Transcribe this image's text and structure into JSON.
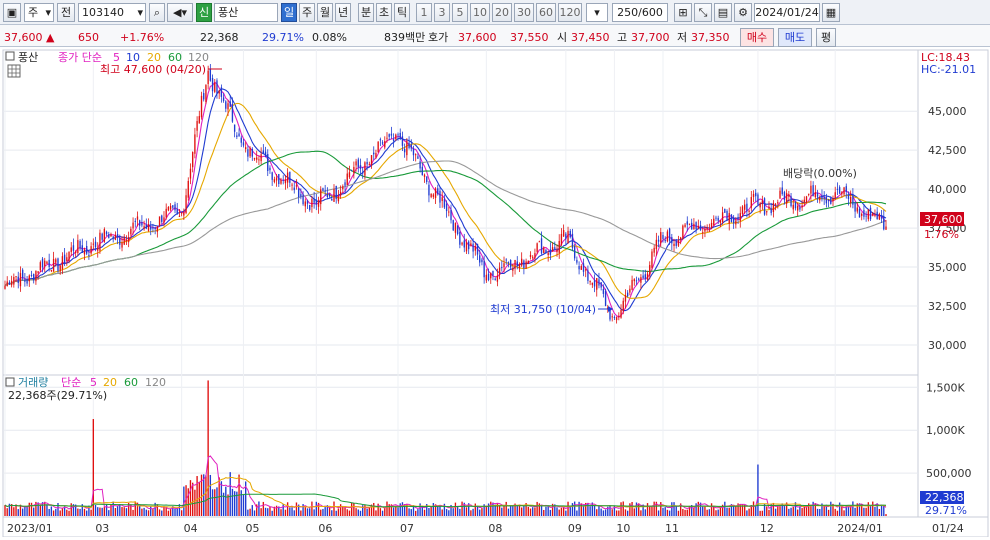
{
  "toolbar": {
    "market": "주",
    "scope": "전",
    "code": "103140",
    "new_badge": "신",
    "name": "풍산",
    "periods": [
      "일",
      "주",
      "월",
      "년",
      "분",
      "초",
      "틱"
    ],
    "active_period": "일",
    "intervals": [
      "1",
      "3",
      "5",
      "10",
      "20",
      "30",
      "60",
      "120"
    ],
    "count": "250/600",
    "date": "2024/01/24"
  },
  "info": {
    "price": "37,600",
    "change_arrow": "▲",
    "change": "650",
    "change_pct": "+1.76%",
    "volume": "22,368",
    "vol_ratio": "29.71%",
    "turnover": "0.08%",
    "amount": "839백만",
    "quote_label": "호가",
    "ask": "37,600",
    "bid": "37,550",
    "open_label": "시",
    "open": "37,450",
    "high_label": "고",
    "high": "37,700",
    "low_label": "저",
    "low": "37,350",
    "buy_btn": "매수",
    "sell_btn": "매도",
    "eval_btn": "평"
  },
  "price_panel": {
    "stock_label": "풍산",
    "legend_prefix": "종가 단순",
    "ma": [
      "5",
      "10",
      "20",
      "60",
      "120"
    ],
    "ma_colors": [
      "#e020c0",
      "#1f3bd1",
      "#e6a800",
      "#1a9a3a",
      "#999999"
    ],
    "max_annotation": "최고 47,600 (04/20)",
    "min_annotation": "최저 31,750 (10/04)",
    "dividend_annotation": "배당락(0.00%)",
    "lc": "LC:18.43",
    "hc": "HC:-21.01",
    "last_price": "37,600",
    "last_pct": "1.76%"
  },
  "volume_panel": {
    "legend_label": "거래량",
    "legend_prefix": "단순",
    "ma": [
      "5",
      "20",
      "60",
      "120"
    ],
    "sub": "22,368주(29.71%)",
    "last_volume": "22,368",
    "last_pct": "29.71%"
  },
  "chart_data": {
    "type": "candlestick",
    "price_axis": {
      "ticks": [
        "45,000",
        "42,500",
        "40,000",
        "37,500",
        "35,000",
        "32,500",
        "30,000"
      ],
      "values": [
        45000,
        42500,
        40000,
        37500,
        35000,
        32500,
        30000
      ],
      "ylim": [
        28200,
        48800
      ]
    },
    "volume_axis": {
      "ticks": [
        "1,500K",
        "1,000K",
        "500,000"
      ],
      "values": [
        1500000,
        1000000,
        500000
      ],
      "ylim": [
        0,
        1620000
      ]
    },
    "x_ticks": [
      "2023/01",
      "03",
      "04",
      "05",
      "06",
      "07",
      "08",
      "09",
      "10",
      "11",
      "12",
      "2024/01",
      "01/24"
    ],
    "key_points": [
      {
        "label": "2023/01",
        "close": 33800
      },
      {
        "label": "03",
        "close": 36500
      },
      {
        "label": "04",
        "close": 38500
      },
      {
        "label": "04/20",
        "close": 47600
      },
      {
        "label": "05",
        "close": 42800
      },
      {
        "label": "06",
        "close": 39000
      },
      {
        "label": "07",
        "close": 43500
      },
      {
        "label": "08",
        "close": 34500
      },
      {
        "label": "09",
        "close": 36800
      },
      {
        "label": "10/04",
        "close": 31750
      },
      {
        "label": "11",
        "close": 36800
      },
      {
        "label": "12",
        "close": 39000
      },
      {
        "label": "2024/01",
        "close": 39800
      },
      {
        "label": "01/24",
        "close": 37600
      }
    ],
    "volume_highlights": [
      {
        "label": "03",
        "volume": 1130000
      },
      {
        "label": "04",
        "volume": 1580000
      },
      {
        "label": "12",
        "volume": 600000
      },
      {
        "label": "01/24",
        "volume": 22368
      }
    ]
  }
}
